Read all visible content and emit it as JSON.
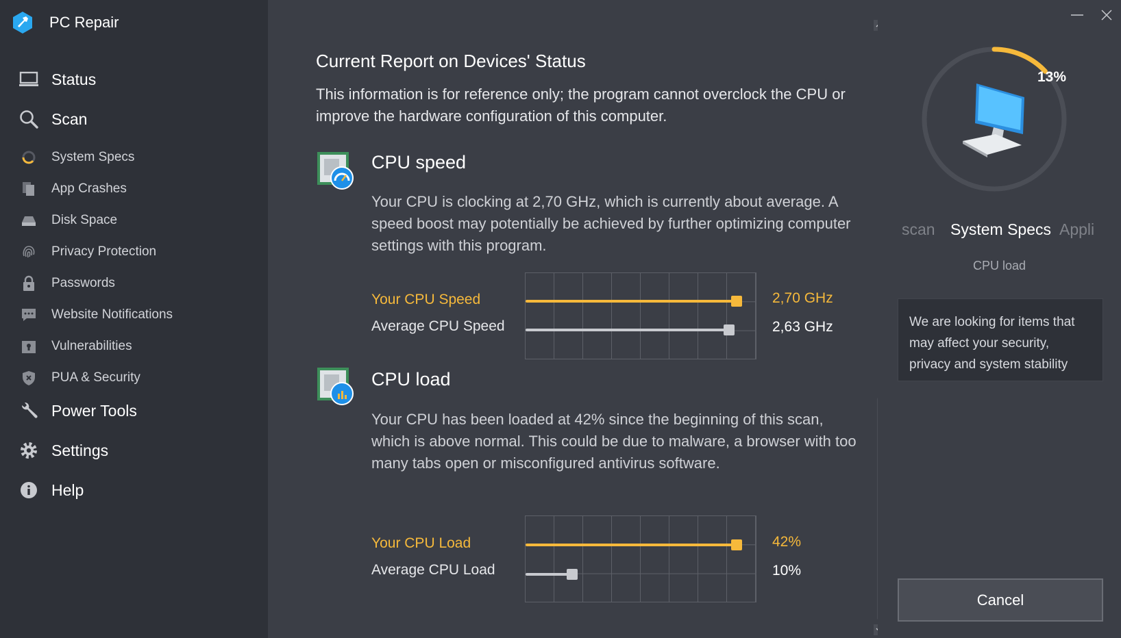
{
  "app": {
    "title": "PC Repair"
  },
  "sidebar": {
    "items": [
      {
        "label": "Status",
        "icon": "monitor-icon",
        "type": "main"
      },
      {
        "label": "Scan",
        "icon": "magnifier-icon",
        "type": "main"
      },
      {
        "label": "System Specs",
        "icon": "spinner-icon",
        "type": "sub"
      },
      {
        "label": "App Crashes",
        "icon": "documents-icon",
        "type": "sub"
      },
      {
        "label": "Disk Space",
        "icon": "disk-icon",
        "type": "sub"
      },
      {
        "label": "Privacy Protection",
        "icon": "fingerprint-icon",
        "type": "sub"
      },
      {
        "label": "Passwords",
        "icon": "lock-icon",
        "type": "sub"
      },
      {
        "label": "Website Notifications",
        "icon": "chat-icon",
        "type": "sub"
      },
      {
        "label": "Vulnerabilities",
        "icon": "keyhole-icon",
        "type": "sub"
      },
      {
        "label": "PUA & Security",
        "icon": "shield-icon",
        "type": "sub"
      },
      {
        "label": "Power Tools",
        "icon": "wrench-icon",
        "type": "main"
      },
      {
        "label": "Settings",
        "icon": "gear-icon",
        "type": "main"
      },
      {
        "label": "Help",
        "icon": "info-icon",
        "type": "main"
      }
    ]
  },
  "main": {
    "title": "Current Report on Devices' Status",
    "intro": "This information is for reference only; the program cannot overclock the CPU or improve the hardware configuration of this computer.",
    "cpu_speed": {
      "title": "CPU speed",
      "description": "Your CPU is clocking at 2,70 GHz, which is currently about average. A speed boost may potentially be achieved by further optimizing computer settings with this program.",
      "your_label": "Your CPU Speed",
      "your_value": "2,70 GHz",
      "your_level": 0.91,
      "avg_label": "Average CPU Speed",
      "avg_value": "2,63 GHz",
      "avg_level": 0.88
    },
    "cpu_load": {
      "title": "CPU load",
      "description": "Your CPU has been loaded at 42% since the beginning of this scan, which is above normal. This could be due to malware, a browser with too many tabs open or misconfigured antivirus software.",
      "your_label": "Your CPU Load",
      "your_value": "42%",
      "your_level": 0.91,
      "avg_label": "Average CPU Load",
      "avg_value": "10%",
      "avg_level": 0.2
    }
  },
  "right": {
    "progress": "13%",
    "progress_fraction": 0.13,
    "steps": {
      "prev": "scan",
      "current": "System Specs",
      "next": "Appli"
    },
    "sub_status": "CPU load",
    "info": "We are looking for items that may affect your security, privacy and system stability",
    "cancel_label": "Cancel"
  },
  "colors": {
    "accent": "#f6b93b",
    "sidebar_bg": "#2e3138",
    "main_bg": "#3b3e46"
  }
}
